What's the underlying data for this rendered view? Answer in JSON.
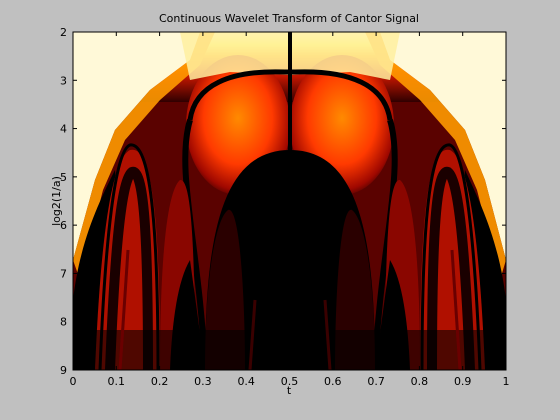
{
  "chart_data": {
    "type": "heatmap",
    "title": "Continuous Wavelet Transform of Cantor Signal",
    "xlabel": "t",
    "ylabel": "log2(1/a)",
    "xlim": [
      0,
      1
    ],
    "ylim": [
      2,
      9
    ],
    "y_reversed": true,
    "xticks": [
      0,
      0.1,
      0.2,
      0.3,
      0.4,
      0.5,
      0.6,
      0.7,
      0.8,
      0.9,
      1
    ],
    "xtick_labels": [
      "0",
      "0.1",
      "0.2",
      "0.3",
      "0.4",
      "0.5",
      "0.6",
      "0.7",
      "0.8",
      "0.9",
      "1"
    ],
    "yticks": [
      2,
      3,
      4,
      5,
      6,
      7,
      8,
      9
    ],
    "ytick_labels": [
      "2",
      "3",
      "4",
      "5",
      "6",
      "7",
      "8",
      "9"
    ],
    "colormap": "hot",
    "grid": false
  }
}
